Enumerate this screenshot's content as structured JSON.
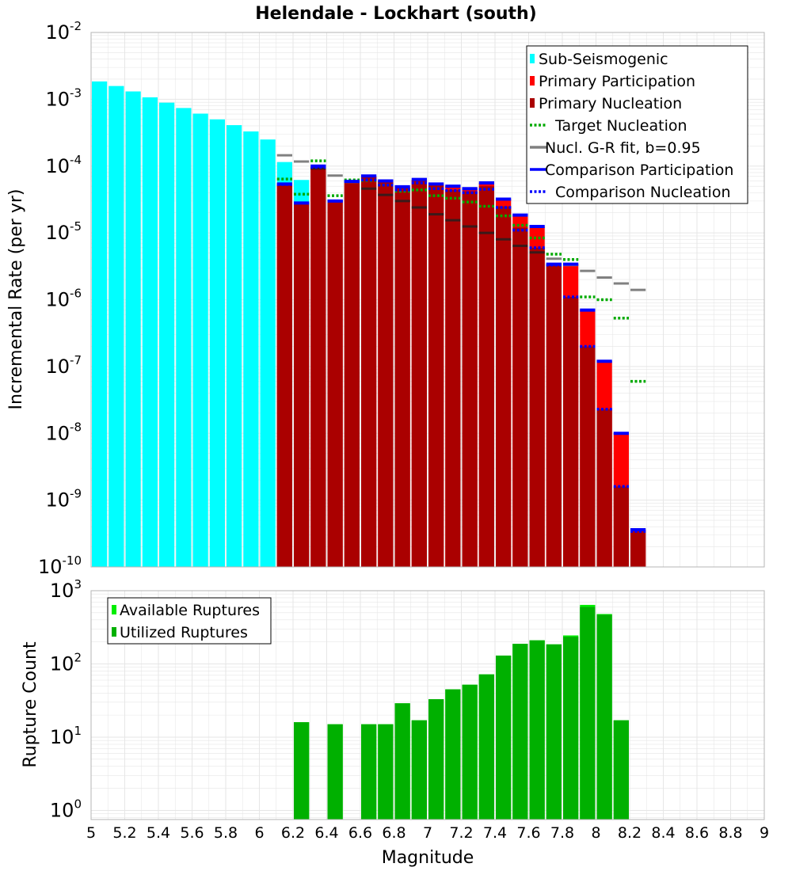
{
  "title": "Helendale - Lockhart (south)",
  "colors": {
    "sub_seismogenic": "#00ffff",
    "primary_participation": "#ff0000",
    "primary_nucleation": "#aa0000",
    "target_nucleation": "#00aa00",
    "gr_fit": "#808080",
    "comparison_participation": "#0000ff",
    "comparison_nucleation": "#0000ff",
    "available_ruptures": "#00ee00",
    "utilized_ruptures": "#00b000",
    "grid": "#e6e6e6"
  },
  "chart_data": [
    {
      "type": "bar",
      "title": "Helendale - Lockhart (south)",
      "xlabel": "",
      "ylabel": "Incremental Rate (per yr)",
      "yscale": "log",
      "xlim": [
        5,
        9
      ],
      "ylim": [
        1e-10,
        0.01
      ],
      "bin_width": 0.1,
      "ytick_labels": [
        {
          "base": "10",
          "exp": "-10",
          "value": 1e-10
        },
        {
          "base": "10",
          "exp": "-9",
          "value": 1e-09
        },
        {
          "base": "10",
          "exp": "-8",
          "value": 1e-08
        },
        {
          "base": "10",
          "exp": "-7",
          "value": 1e-07
        },
        {
          "base": "10",
          "exp": "-6",
          "value": 1e-06
        },
        {
          "base": "10",
          "exp": "-5",
          "value": 1e-05
        },
        {
          "base": "10",
          "exp": "-4",
          "value": 0.0001
        },
        {
          "base": "10",
          "exp": "-3",
          "value": 0.001
        },
        {
          "base": "10",
          "exp": "-2",
          "value": 0.01
        }
      ],
      "legend": [
        {
          "label": "Sub-Seismogenic",
          "style": "box",
          "color_key": "sub_seismogenic"
        },
        {
          "label": "Primary Participation",
          "style": "box",
          "color_key": "primary_participation"
        },
        {
          "label": "Primary Nucleation",
          "style": "box",
          "color_key": "primary_nucleation"
        },
        {
          "label": "Target Nucleation",
          "style": "dotted",
          "color_key": "target_nucleation"
        },
        {
          "label": "Nucl. G-R fit, b=0.95",
          "style": "solid",
          "color_key": "gr_fit"
        },
        {
          "label": "Comparison Participation",
          "style": "solid",
          "color_key": "comparison_participation"
        },
        {
          "label": "Comparison Nucleation",
          "style": "dotted",
          "color_key": "comparison_nucleation"
        }
      ],
      "legend_position": "top-right",
      "series": [
        {
          "name": "Sub-Seismogenic",
          "x": [
            5.05,
            5.15,
            5.25,
            5.35,
            5.45,
            5.55,
            5.65,
            5.75,
            5.85,
            5.95,
            6.05,
            6.15,
            6.25
          ],
          "values": [
            0.00185,
            0.00158,
            0.00131,
            0.00107,
            0.00089,
            0.00074,
            0.00061,
            0.0005,
            0.00041,
            0.00033,
            0.00025,
            0.000115,
            6.2e-05
          ]
        },
        {
          "name": "Primary Participation",
          "x": [
            6.15,
            6.25,
            6.35,
            6.45,
            6.55,
            6.65,
            6.75,
            6.85,
            6.95,
            7.05,
            7.15,
            7.25,
            7.35,
            7.45,
            7.55,
            7.65,
            7.75,
            7.85,
            7.95,
            8.05,
            8.15,
            8.25
          ],
          "values": [
            5.2e-05,
            2.8e-05,
            9.6e-05,
            3e-05,
            5.8e-05,
            7e-05,
            6e-05,
            4.8e-05,
            6.2e-05,
            5.4e-05,
            5e-05,
            4.6e-05,
            5.6e-05,
            3.2e-05,
            1.85e-05,
            1.25e-05,
            3.4e-06,
            3.4e-06,
            7e-07,
            1.2e-07,
            1e-08,
            3.6e-10
          ]
        },
        {
          "name": "Primary Nucleation",
          "x": [
            6.15,
            6.25,
            6.35,
            6.45,
            6.55,
            6.65,
            6.75,
            6.85,
            6.95,
            7.05,
            7.15,
            7.25,
            7.35,
            7.45,
            7.55,
            7.65,
            7.75,
            7.85,
            7.95,
            8.05,
            8.15,
            8.25
          ],
          "values": [
            5.2e-05,
            2.8e-05,
            9.6e-05,
            3e-05,
            5.8e-05,
            7e-05,
            6e-05,
            4.8e-05,
            6.2e-05,
            5.2e-05,
            4.4e-05,
            4.2e-05,
            5e-05,
            2.5e-05,
            1.2e-05,
            6e-06,
            3.3e-06,
            1.1e-06,
            2e-07,
            2.3e-08,
            1.6e-09,
            3.4e-10
          ]
        },
        {
          "name": "Target Nucleation",
          "x": [
            6.15,
            6.25,
            6.35,
            6.45,
            6.55,
            6.65,
            6.75,
            6.85,
            6.95,
            7.05,
            7.15,
            7.25,
            7.35,
            7.45,
            7.55,
            7.65,
            7.75,
            7.85,
            7.95,
            8.05,
            8.15,
            8.25
          ],
          "values": [
            6.4e-05,
            3.8e-05,
            0.00012,
            3.6e-05,
            6.2e-05,
            6.1e-05,
            5.2e-05,
            4.2e-05,
            4.4e-05,
            3.6e-05,
            3.3e-05,
            2.9e-05,
            2.5e-05,
            1.8e-05,
            1.3e-05,
            8.4e-06,
            4.8e-06,
            4e-06,
            1.1e-06,
            1e-06,
            5.3e-07,
            6e-08
          ]
        },
        {
          "name": "Nucl. G-R fit, b=0.95",
          "x": [
            6.15,
            6.25,
            6.35,
            6.45,
            6.55,
            6.65,
            6.75,
            6.85,
            6.95,
            7.05,
            7.15,
            7.25,
            7.35,
            7.45,
            7.55,
            7.65,
            7.75,
            7.85,
            7.95,
            8.05,
            8.15,
            8.25
          ],
          "values": [
            0.000145,
            0.000117,
            9.2e-05,
            7.2e-05,
            5.8e-05,
            4.6e-05,
            3.7e-05,
            3e-05,
            2.4e-05,
            1.9e-05,
            1.55e-05,
            1.25e-05,
            1e-05,
            8e-06,
            6.4e-06,
            5.1e-06,
            4.1e-06,
            3.3e-06,
            2.7e-06,
            2.15e-06,
            1.75e-06,
            1.4e-06
          ]
        },
        {
          "name": "Comparison Participation",
          "x": [
            6.15,
            6.25,
            6.35,
            6.45,
            6.55,
            6.65,
            6.75,
            6.85,
            6.95,
            7.05,
            7.15,
            7.25,
            7.35,
            7.45,
            7.55,
            7.65,
            7.75,
            7.85,
            7.95,
            8.05,
            8.15,
            8.25
          ],
          "values": [
            5.4e-05,
            2.8e-05,
            0.0001,
            3e-05,
            5.9e-05,
            7.1e-05,
            6e-05,
            4.9e-05,
            6.3e-05,
            5.4e-05,
            5e-05,
            4.6e-05,
            5.6e-05,
            3.2e-05,
            1.85e-05,
            1.25e-05,
            3.4e-06,
            3.4e-06,
            7e-07,
            1.2e-07,
            1e-08,
            3.6e-10
          ]
        },
        {
          "name": "Comparison Nucleation",
          "x": [
            6.15,
            6.25,
            6.35,
            6.45,
            6.55,
            6.65,
            6.75,
            6.85,
            6.95,
            7.05,
            7.15,
            7.25,
            7.35,
            7.45,
            7.55,
            7.65,
            7.75,
            7.85,
            7.95,
            8.05,
            8.15,
            8.25
          ],
          "values": [
            5.3e-05,
            2.8e-05,
            9.6e-05,
            3e-05,
            5.9e-05,
            6.2e-05,
            5.2e-05,
            4.4e-05,
            5.6e-05,
            4.6e-05,
            4.3e-05,
            4e-05,
            4.5e-05,
            2.4e-05,
            1.1e-05,
            6e-06,
            3.3e-06,
            1.1e-06,
            2e-07,
            2.3e-08,
            1.6e-09,
            3.4e-10
          ]
        }
      ]
    },
    {
      "type": "bar",
      "title": "",
      "xlabel": "Magnitude",
      "ylabel": "Rupture Count",
      "yscale": "log",
      "xlim": [
        5,
        9
      ],
      "ylim": [
        0.75,
        1000
      ],
      "bin_width": 0.1,
      "xtick_labels": [
        "5",
        "5.2",
        "5.4",
        "5.6",
        "5.8",
        "6",
        "6.2",
        "6.4",
        "6.6",
        "6.8",
        "7",
        "7.2",
        "7.4",
        "7.6",
        "7.8",
        "8",
        "8.2",
        "8.4",
        "8.6",
        "8.8",
        "9"
      ],
      "ytick_labels": [
        {
          "base": "10",
          "exp": "0",
          "value": 1
        },
        {
          "base": "10",
          "exp": "1",
          "value": 10
        },
        {
          "base": "10",
          "exp": "2",
          "value": 100
        },
        {
          "base": "10",
          "exp": "3",
          "value": 1000
        }
      ],
      "legend": [
        {
          "label": "Available Ruptures",
          "style": "box",
          "color_key": "available_ruptures"
        },
        {
          "label": "Utilized Ruptures",
          "style": "box",
          "color_key": "utilized_ruptures"
        }
      ],
      "legend_position": "top-left",
      "series": [
        {
          "name": "Available Ruptures",
          "x": [
            6.25,
            6.45,
            6.65,
            6.75,
            6.85,
            6.95,
            7.05,
            7.15,
            7.25,
            7.35,
            7.45,
            7.55,
            7.65,
            7.75,
            7.85,
            7.95,
            8.05,
            8.15
          ],
          "values": [
            16,
            15,
            15,
            15,
            29,
            17,
            33,
            45,
            52,
            72,
            130,
            188,
            210,
            185,
            245,
            640,
            480,
            17
          ]
        },
        {
          "name": "Utilized Ruptures",
          "x": [
            6.25,
            6.45,
            6.65,
            6.75,
            6.85,
            6.95,
            7.05,
            7.15,
            7.25,
            7.35,
            7.45,
            7.55,
            7.65,
            7.75,
            7.85,
            7.95,
            8.05,
            8.15
          ],
          "values": [
            16,
            15,
            15,
            15,
            29,
            17,
            33,
            45,
            52,
            72,
            130,
            188,
            210,
            185,
            235,
            600,
            470,
            17
          ]
        }
      ]
    }
  ]
}
